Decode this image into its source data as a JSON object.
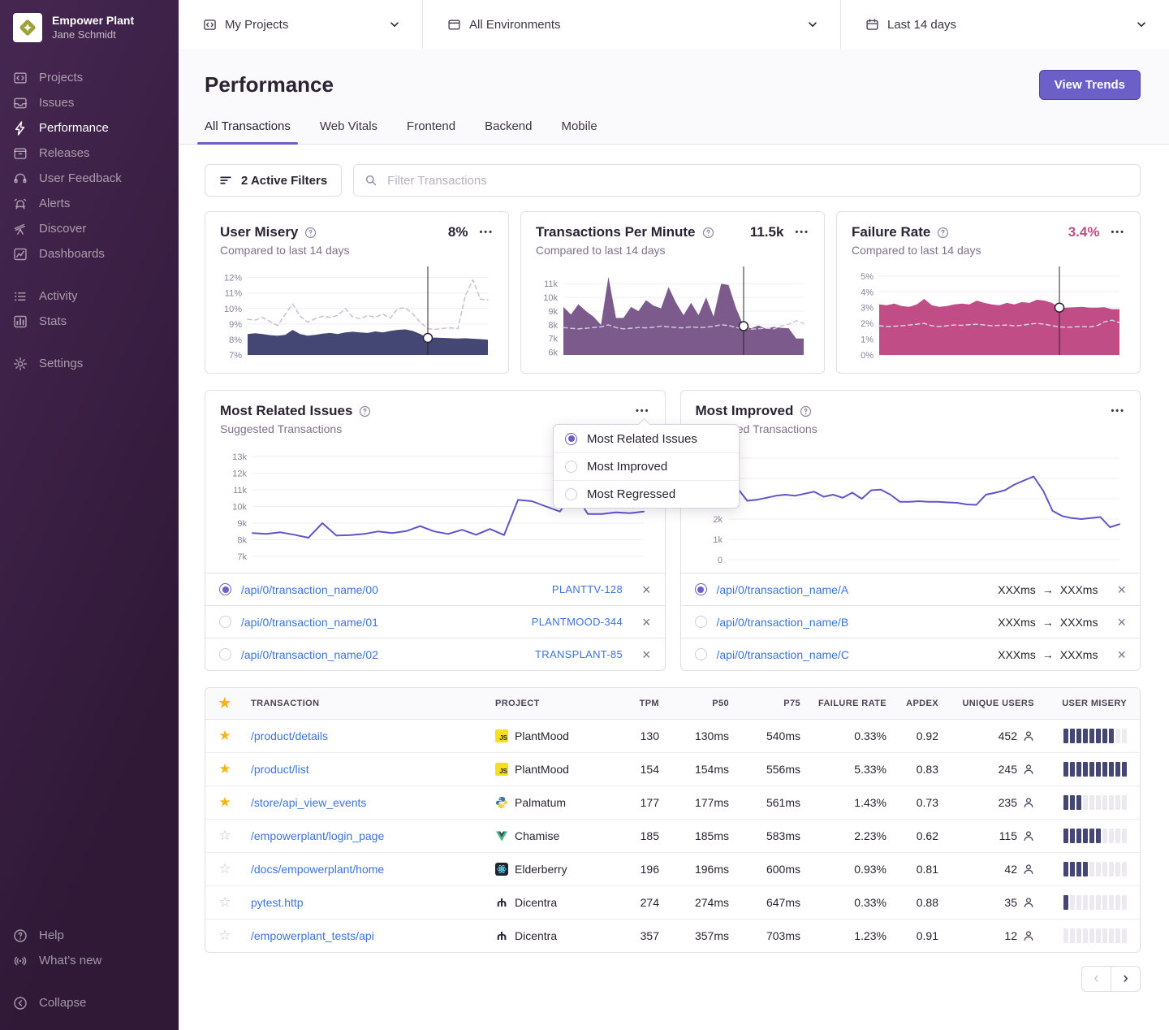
{
  "sidebar": {
    "org_name": "Empower Plant",
    "user_name": "Jane Schmidt",
    "logo_icon": "empower-plant-logo",
    "primary": [
      {
        "icon": "projects-icon",
        "label": "Projects",
        "active": false
      },
      {
        "icon": "issues-icon",
        "label": "Issues",
        "active": false
      },
      {
        "icon": "performance-icon",
        "label": "Performance",
        "active": true
      },
      {
        "icon": "releases-icon",
        "label": "Releases",
        "active": false
      },
      {
        "icon": "user-feedback-icon",
        "label": "User Feedback",
        "active": false
      },
      {
        "icon": "alerts-icon",
        "label": "Alerts",
        "active": false
      },
      {
        "icon": "discover-icon",
        "label": "Discover",
        "active": false
      },
      {
        "icon": "dashboards-icon",
        "label": "Dashboards",
        "active": false
      }
    ],
    "secondary": [
      {
        "icon": "activity-icon",
        "label": "Activity",
        "active": false
      },
      {
        "icon": "stats-icon",
        "label": "Stats",
        "active": false
      }
    ],
    "tertiary": [
      {
        "icon": "settings-icon",
        "label": "Settings",
        "active": false
      }
    ],
    "footer": [
      {
        "icon": "help-icon",
        "label": "Help",
        "active": false
      },
      {
        "icon": "whats-new-icon",
        "label": "What’s new",
        "active": false
      }
    ],
    "collapse": {
      "icon": "collapse-icon",
      "label": "Collapse",
      "active": false
    }
  },
  "topbar": {
    "selects": [
      {
        "icon": "projects-icon",
        "value": "My Projects"
      },
      {
        "icon": "window-icon",
        "value": "All Environments"
      },
      {
        "icon": "calendar-icon",
        "value": "Last 14 days"
      }
    ]
  },
  "header": {
    "title": "Performance",
    "view_trends_label": "View Trends",
    "tabs": [
      {
        "label": "All Transactions",
        "active": true
      },
      {
        "label": "Web Vitals",
        "active": false
      },
      {
        "label": "Frontend",
        "active": false
      },
      {
        "label": "Backend",
        "active": false
      },
      {
        "label": "Mobile",
        "active": false
      }
    ]
  },
  "filters": {
    "button_label": "2 Active Filters",
    "search_placeholder": "Filter Transactions"
  },
  "colors": {
    "accent_purple": "#6C5FC7",
    "misery_navy": "#444674",
    "tpm_purple": "#7C5A8C",
    "failure_pink": "#C04D86",
    "line_indigo": "#5E55C8",
    "baseline_dashed": "#C8C0D2",
    "link_blue": "#3D74DB",
    "star_yellow": "#F2B712"
  },
  "metric_cards": [
    {
      "title": "User Misery",
      "value": "8%",
      "value_color": "#2B2233",
      "subtitle": "Compared to last 14 days",
      "chart_data": {
        "type": "area",
        "ymin": 7,
        "ymax": 12.4,
        "yticks": [
          {
            "value": 12,
            "label": "12%"
          },
          {
            "value": 11,
            "label": "11%"
          },
          {
            "value": 10,
            "label": "10%"
          },
          {
            "value": 9,
            "label": "9%"
          },
          {
            "value": 8,
            "label": "8%"
          },
          {
            "value": 7,
            "label": "7%"
          }
        ],
        "series": [
          {
            "name": "current",
            "type": "area",
            "color": "#444674",
            "values": [
              8.35,
              8.4,
              8.35,
              8.28,
              8.25,
              8.3,
              8.62,
              8.35,
              8.25,
              8.3,
              8.38,
              8.42,
              8.35,
              8.45,
              8.5,
              8.45,
              8.42,
              8.52,
              8.45,
              8.55,
              8.62,
              8.65,
              8.55,
              8.35,
              8.1,
              8.12,
              8.1,
              8.08,
              8.06,
              8.08,
              8.05,
              8.02,
              7.98
            ]
          },
          {
            "name": "previous period",
            "type": "dashed",
            "color": "#C8C0D2",
            "values": [
              9.3,
              9.25,
              9.42,
              9.15,
              8.9,
              9.62,
              10.28,
              9.5,
              9.12,
              9.35,
              9.5,
              9.42,
              9.55,
              10.0,
              9.45,
              9.35,
              9.55,
              9.42,
              9.65,
              9.38,
              10.0,
              10.05,
              9.65,
              9.1,
              8.7,
              8.65,
              8.72,
              8.75,
              8.7,
              10.85,
              11.85,
              10.6,
              10.55
            ]
          }
        ],
        "marker": {
          "series": 0,
          "index": 24
        }
      }
    },
    {
      "title": "Transactions Per Minute",
      "value": "11.5k",
      "value_color": "#2B2233",
      "subtitle": "Compared to last 14 days",
      "chart_data": {
        "type": "area",
        "ymin": 5.8,
        "ymax": 11.9,
        "yticks": [
          {
            "value": 11,
            "label": "11k"
          },
          {
            "value": 10,
            "label": "10k"
          },
          {
            "value": 9,
            "label": "9k"
          },
          {
            "value": 8,
            "label": "8k"
          },
          {
            "value": 7,
            "label": "7k"
          },
          {
            "value": 6,
            "label": "6k"
          }
        ],
        "series": [
          {
            "name": "current",
            "type": "area",
            "color": "#7C5A8C",
            "values": [
              9.3,
              8.75,
              9.5,
              9.0,
              8.6,
              8.0,
              11.5,
              8.5,
              8.5,
              9.3,
              9.0,
              9.8,
              9.4,
              9.2,
              10.75,
              9.6,
              8.7,
              9.6,
              8.7,
              10.0,
              8.6,
              11.0,
              10.9,
              9.2,
              7.9,
              7.75,
              7.95,
              7.7,
              7.85,
              7.78,
              7.75,
              7.0,
              7.0
            ]
          },
          {
            "name": "previous period",
            "type": "dashed",
            "color": "#CFC8D8",
            "values": [
              7.8,
              7.75,
              7.7,
              7.75,
              7.8,
              7.85,
              8.0,
              7.8,
              7.7,
              7.75,
              7.8,
              7.78,
              7.82,
              7.9,
              7.85,
              7.8,
              7.78,
              7.85,
              7.8,
              7.82,
              7.9,
              8.0,
              7.95,
              7.8,
              7.72,
              7.68,
              7.72,
              7.75,
              7.7,
              7.9,
              8.05,
              8.3,
              8.1
            ]
          }
        ],
        "marker": {
          "series": 0,
          "index": 24
        }
      }
    },
    {
      "title": "Failure Rate",
      "value": "3.4%",
      "value_color": "#C04D86",
      "subtitle": "Compared to last 14 days",
      "chart_data": {
        "type": "area",
        "ymin": 0,
        "ymax": 5.3,
        "yticks": [
          {
            "value": 5,
            "label": "5%"
          },
          {
            "value": 4,
            "label": "4%"
          },
          {
            "value": 3,
            "label": "3%"
          },
          {
            "value": 2,
            "label": "2%"
          },
          {
            "value": 1,
            "label": "1%"
          },
          {
            "value": 0,
            "label": "0%"
          }
        ],
        "series": [
          {
            "name": "current",
            "type": "area",
            "color": "#C04D86",
            "values": [
              3.2,
              3.15,
              3.25,
              3.1,
              3.05,
              3.2,
              3.55,
              3.15,
              3.05,
              3.1,
              3.2,
              3.25,
              3.2,
              3.45,
              3.3,
              3.2,
              3.15,
              3.3,
              3.2,
              3.35,
              3.3,
              3.5,
              3.45,
              3.3,
              3.0,
              3.0,
              3.02,
              3.05,
              3.0,
              3.0,
              3.02,
              2.9,
              2.9
            ]
          },
          {
            "name": "previous period",
            "type": "dashed",
            "color": "#D8D2DF",
            "values": [
              1.85,
              1.8,
              1.82,
              1.85,
              1.9,
              1.95,
              2.0,
              1.85,
              1.8,
              1.85,
              1.9,
              1.88,
              1.92,
              1.95,
              1.9,
              1.85,
              1.88,
              1.9,
              1.85,
              1.88,
              1.95,
              2.0,
              1.95,
              1.85,
              1.78,
              1.75,
              1.78,
              1.8,
              1.78,
              1.85,
              2.1,
              2.2,
              2.05
            ]
          }
        ],
        "marker": {
          "series": 0,
          "index": 24
        }
      }
    }
  ],
  "panels": {
    "left": {
      "title": "Most Related Issues",
      "subtitle": "Suggested Transactions",
      "chart_data": {
        "type": "line",
        "ymin": 6.8,
        "ymax": 13.4,
        "yticks": [
          {
            "value": 13,
            "label": "13k"
          },
          {
            "value": 12,
            "label": "12k"
          },
          {
            "value": 11,
            "label": "11k"
          },
          {
            "value": 10,
            "label": "10k"
          },
          {
            "value": 9,
            "label": "9k"
          },
          {
            "value": 8,
            "label": "8k"
          },
          {
            "value": 7,
            "label": "7k"
          }
        ],
        "series": [
          {
            "name": "transactions",
            "type": "line",
            "color": "#5E55C8",
            "values": [
              8.4,
              8.35,
              8.45,
              8.3,
              8.12,
              9.0,
              8.25,
              8.28,
              8.35,
              8.5,
              8.4,
              8.52,
              8.82,
              8.5,
              8.35,
              8.6,
              8.3,
              8.65,
              8.28,
              10.4,
              10.32,
              10.0,
              9.7,
              10.85,
              9.55,
              9.55,
              9.65,
              9.6,
              9.7
            ]
          }
        ]
      },
      "rows": [
        {
          "selected": true,
          "link": "/api/0/transaction_name/00",
          "tag": "PLANTTV-128"
        },
        {
          "selected": false,
          "link": "/api/0/transaction_name/01",
          "tag": "PLANTMOOD-344"
        },
        {
          "selected": false,
          "link": "/api/0/transaction_name/02",
          "tag": "TRANSPLANT-85"
        }
      ]
    },
    "right": {
      "title": "Most Improved",
      "subtitle": "Suggested Transactions",
      "chart_data": {
        "type": "line",
        "ymin": 0,
        "ymax": 5.4,
        "yticks": [
          {
            "value": 5,
            "label": ""
          },
          {
            "value": 4,
            "label": ""
          },
          {
            "value": 3,
            "label": ""
          },
          {
            "value": 2,
            "label": "2k"
          },
          {
            "value": 1,
            "label": "1k"
          },
          {
            "value": 0,
            "label": "0"
          }
        ],
        "series": [
          {
            "name": "transactions",
            "type": "line",
            "color": "#5E55C8",
            "values": [
              3.1,
              3.5,
              2.9,
              2.95,
              3.05,
              3.15,
              3.2,
              3.15,
              3.25,
              3.35,
              3.1,
              3.2,
              3.05,
              3.3,
              3.0,
              3.42,
              3.45,
              3.2,
              2.85,
              2.85,
              2.88,
              2.85,
              2.85,
              2.82,
              2.8,
              2.72,
              2.7,
              3.2,
              3.3,
              3.42,
              3.7,
              3.9,
              4.1,
              3.4,
              2.4,
              2.15,
              2.05,
              2.0,
              2.05,
              2.1,
              1.6,
              1.75
            ]
          }
        ]
      },
      "rows": [
        {
          "selected": true,
          "link": "/api/0/transaction_name/A",
          "from": "XXXms",
          "to": "XXXms"
        },
        {
          "selected": false,
          "link": "/api/0/transaction_name/B",
          "from": "XXXms",
          "to": "XXXms"
        },
        {
          "selected": false,
          "link": "/api/0/transaction_name/C",
          "from": "XXXms",
          "to": "XXXms"
        }
      ]
    }
  },
  "dropdown_menu": {
    "items": [
      {
        "label": "Most Related Issues",
        "selected": true
      },
      {
        "label": "Most Improved",
        "selected": false
      },
      {
        "label": "Most Regressed",
        "selected": false
      }
    ]
  },
  "table": {
    "columns": [
      "TRANSACTION",
      "PROJECT",
      "TPM",
      "P50",
      "P75",
      "FAILURE RATE",
      "APDEX",
      "UNIQUE USERS",
      "USER MISERY"
    ],
    "misery_total_bars": 10,
    "rows": [
      {
        "starred": true,
        "transaction": "/product/details",
        "project": "PlantMood",
        "project_icon": "js-icon",
        "tpm": "130",
        "p50": "130ms",
        "p75": "540ms",
        "failure_rate": "0.33%",
        "apdex": "0.92",
        "users": "452",
        "misery_filled": 8
      },
      {
        "starred": true,
        "transaction": "/product/list",
        "project": "PlantMood",
        "project_icon": "js-icon",
        "tpm": "154",
        "p50": "154ms",
        "p75": "556ms",
        "failure_rate": "5.33%",
        "apdex": "0.83",
        "users": "245",
        "misery_filled": 10
      },
      {
        "starred": true,
        "transaction": "/store/api_view_events",
        "project": "Palmatum",
        "project_icon": "python-icon",
        "tpm": "177",
        "p50": "177ms",
        "p75": "561ms",
        "failure_rate": "1.43%",
        "apdex": "0.73",
        "users": "235",
        "misery_filled": 3
      },
      {
        "starred": false,
        "transaction": "/empowerplant/login_page",
        "project": "Chamise",
        "project_icon": "vue-icon",
        "tpm": "185",
        "p50": "185ms",
        "p75": "583ms",
        "failure_rate": "2.23%",
        "apdex": "0.62",
        "users": "115",
        "misery_filled": 6
      },
      {
        "starred": false,
        "transaction": "/docs/empowerplant/home",
        "project": "Elderberry",
        "project_icon": "react-icon",
        "tpm": "196",
        "p50": "196ms",
        "p75": "600ms",
        "failure_rate": "0.93%",
        "apdex": "0.81",
        "users": "42",
        "misery_filled": 4
      },
      {
        "starred": false,
        "transaction": "pytest.http",
        "project": "Dicentra",
        "project_icon": "dicentra-icon",
        "tpm": "274",
        "p50": "274ms",
        "p75": "647ms",
        "failure_rate": "0.33%",
        "apdex": "0.88",
        "users": "35",
        "misery_filled": 1
      },
      {
        "starred": false,
        "transaction": "/empowerplant_tests/api",
        "project": "Dicentra",
        "project_icon": "dicentra-icon",
        "tpm": "357",
        "p50": "357ms",
        "p75": "703ms",
        "failure_rate": "1.23%",
        "apdex": "0.91",
        "users": "12",
        "misery_filled": 0
      }
    ]
  },
  "pagination": {
    "prev_enabled": false,
    "next_enabled": true
  }
}
